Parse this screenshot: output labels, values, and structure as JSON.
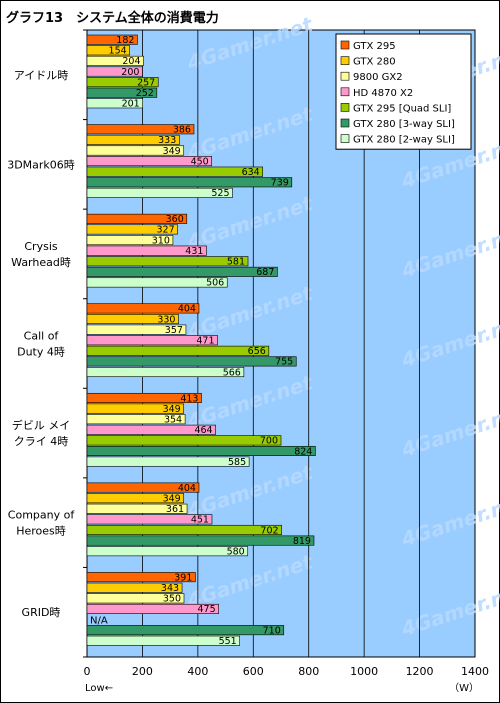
{
  "title": "グラフ13　システム全体の消費電力",
  "chart_data": {
    "type": "bar",
    "orientation": "horizontal",
    "categories": [
      [
        "アイドル時"
      ],
      [
        "3DMark06時"
      ],
      [
        "Crysis",
        "Warhead時"
      ],
      [
        "Call of",
        "Duty 4時"
      ],
      [
        "デビル メイ",
        "クライ 4時"
      ],
      [
        "Company of",
        "Heroes時"
      ],
      [
        "GRID時"
      ]
    ],
    "series": [
      {
        "name": "GTX 295",
        "color": "#ff6600",
        "values": [
          182,
          386,
          360,
          404,
          413,
          404,
          391
        ]
      },
      {
        "name": "GTX 280",
        "color": "#ffcc00",
        "values": [
          154,
          333,
          327,
          330,
          349,
          349,
          343
        ]
      },
      {
        "name": "9800 GX2",
        "color": "#ffff99",
        "values": [
          204,
          349,
          310,
          357,
          354,
          361,
          350
        ]
      },
      {
        "name": "HD 4870 X2",
        "color": "#ff99cc",
        "values": [
          200,
          450,
          431,
          471,
          464,
          451,
          475
        ]
      },
      {
        "name": "GTX 295 [Quad SLI]",
        "color": "#99cc00",
        "values": [
          257,
          634,
          581,
          656,
          700,
          702,
          null
        ]
      },
      {
        "name": "GTX 280 [3-way SLI]",
        "color": "#339966",
        "values": [
          252,
          739,
          687,
          755,
          824,
          819,
          710
        ]
      },
      {
        "name": "GTX 280 [2-way SLI]",
        "color": "#ccffcc",
        "values": [
          201,
          525,
          506,
          566,
          585,
          580,
          551
        ]
      }
    ],
    "na_label": "N/A",
    "xlim": [
      0,
      1400
    ],
    "xticks": [
      0,
      200,
      400,
      600,
      800,
      1000,
      1200,
      1400
    ],
    "xlabel": "（W）",
    "low_label": "Low←",
    "grid": true,
    "plot_background": "#99ccff",
    "watermark": "4Gamer.net",
    "legend_position": "top-right"
  }
}
